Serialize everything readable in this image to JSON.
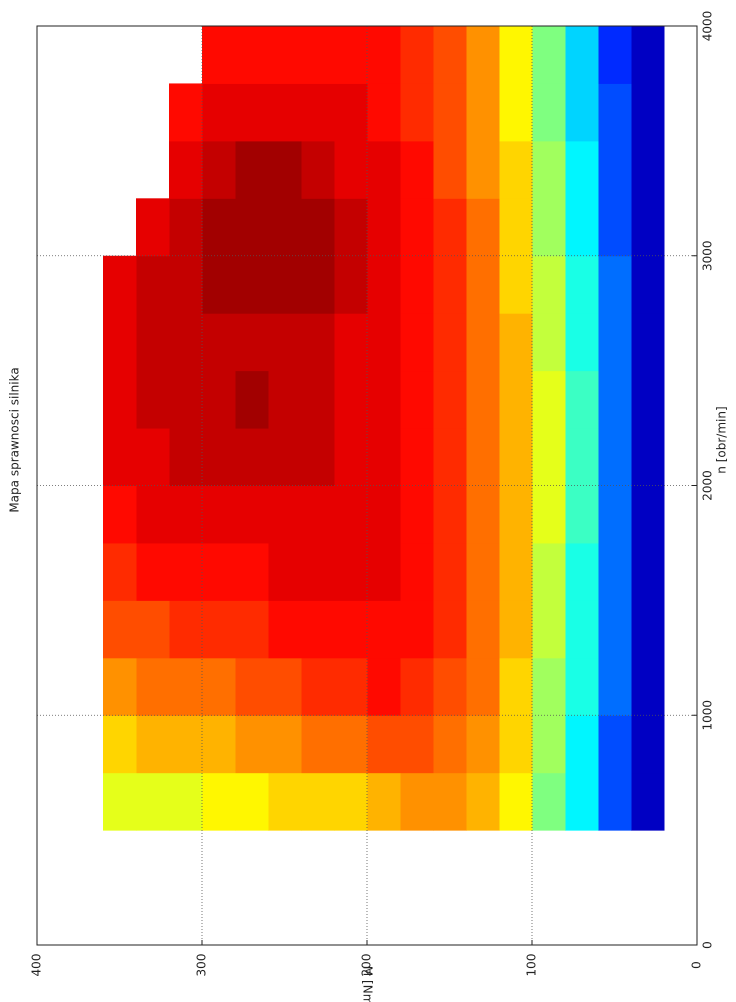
{
  "chart_data": {
    "type": "heatmap",
    "title": "Mapa sprawnosci silnika",
    "xlabel": "n [obr/min]",
    "ylabel": "M [Nm]",
    "xlim": [
      0,
      4000
    ],
    "ylim": [
      0,
      400
    ],
    "xticks": [
      0,
      1000,
      2000,
      3000,
      4000
    ],
    "yticks": [
      0,
      100,
      200,
      300,
      400
    ],
    "grid": true,
    "colormap": "jet",
    "clim": [
      0.1,
      0.4
    ],
    "x_edges": [
      500,
      750,
      1000,
      1250,
      1500,
      1750,
      2000,
      2250,
      2500,
      2750,
      3000,
      3250,
      3500,
      3750,
      4000
    ],
    "y_edges": [
      20,
      40,
      60,
      80,
      100,
      120,
      140,
      160,
      180,
      200,
      220,
      240,
      260,
      280,
      300,
      320,
      340,
      360
    ],
    "z": [
      [
        0.12,
        0.12,
        0.12,
        0.12,
        0.12,
        0.12,
        0.12,
        0.12,
        0.12,
        0.12,
        0.12,
        0.12,
        0.12,
        0.12
      ],
      [
        0.16,
        0.16,
        0.17,
        0.17,
        0.17,
        0.17,
        0.17,
        0.17,
        0.17,
        0.17,
        0.16,
        0.16,
        0.16,
        0.15
      ],
      [
        0.21,
        0.21,
        0.22,
        0.22,
        0.22,
        0.23,
        0.23,
        0.23,
        0.22,
        0.22,
        0.21,
        0.21,
        0.2,
        0.2
      ],
      [
        0.25,
        0.26,
        0.26,
        0.27,
        0.27,
        0.28,
        0.28,
        0.28,
        0.27,
        0.27,
        0.26,
        0.26,
        0.25,
        0.25
      ],
      [
        0.29,
        0.3,
        0.3,
        0.31,
        0.31,
        0.31,
        0.31,
        0.31,
        0.31,
        0.3,
        0.3,
        0.3,
        0.29,
        0.29
      ],
      [
        0.31,
        0.32,
        0.33,
        0.33,
        0.33,
        0.33,
        0.33,
        0.33,
        0.33,
        0.33,
        0.33,
        0.32,
        0.32,
        0.32
      ],
      [
        0.32,
        0.33,
        0.34,
        0.35,
        0.35,
        0.35,
        0.35,
        0.35,
        0.35,
        0.35,
        0.35,
        0.34,
        0.34,
        0.34
      ],
      [
        0.32,
        0.34,
        0.35,
        0.36,
        0.36,
        0.36,
        0.36,
        0.36,
        0.36,
        0.36,
        0.36,
        0.36,
        0.35,
        0.35
      ],
      [
        0.31,
        0.34,
        0.36,
        0.36,
        0.37,
        0.37,
        0.37,
        0.37,
        0.37,
        0.37,
        0.37,
        0.37,
        0.36,
        0.36
      ],
      [
        0.3,
        0.33,
        0.35,
        0.36,
        0.37,
        0.37,
        0.37,
        0.37,
        0.37,
        0.38,
        0.38,
        0.37,
        0.37,
        0.36
      ],
      [
        0.3,
        0.33,
        0.35,
        0.36,
        0.37,
        0.37,
        0.38,
        0.38,
        0.38,
        0.39,
        0.39,
        0.38,
        0.37,
        0.36
      ],
      [
        0.3,
        0.32,
        0.34,
        0.36,
        0.37,
        0.37,
        0.38,
        0.38,
        0.38,
        0.39,
        0.39,
        0.39,
        0.37,
        0.36
      ],
      [
        0.29,
        0.32,
        0.34,
        0.35,
        0.36,
        0.37,
        0.38,
        0.39,
        0.38,
        0.39,
        0.39,
        0.39,
        0.37,
        0.36
      ],
      [
        0.29,
        0.31,
        0.33,
        0.35,
        0.36,
        0.37,
        0.38,
        0.38,
        0.38,
        0.39,
        0.39,
        0.38,
        0.37,
        0.36
      ],
      [
        0.28,
        0.31,
        0.33,
        0.35,
        0.36,
        0.37,
        0.38,
        0.38,
        0.38,
        0.38,
        0.38,
        0.37,
        0.36,
        null
      ],
      [
        0.28,
        0.31,
        0.33,
        0.34,
        0.36,
        0.37,
        0.37,
        0.38,
        0.38,
        0.38,
        0.37,
        null,
        null,
        null
      ],
      [
        0.28,
        0.3,
        0.32,
        0.34,
        0.35,
        0.36,
        0.37,
        0.37,
        0.37,
        0.37,
        null,
        null,
        null,
        null
      ]
    ]
  }
}
